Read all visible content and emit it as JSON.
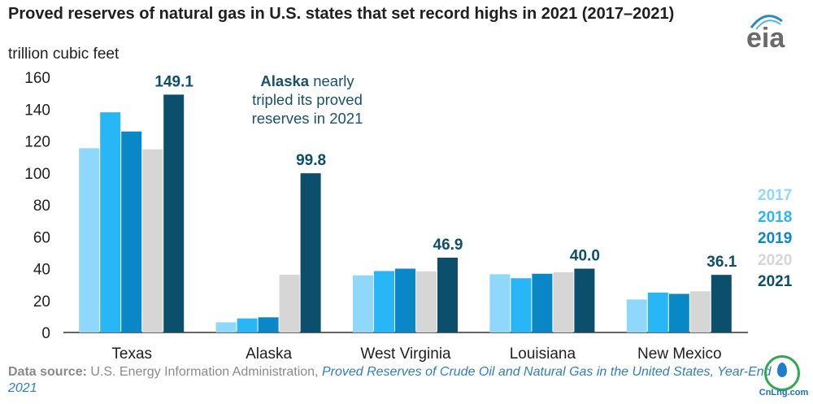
{
  "header": {
    "title": "Proved reserves of natural gas in U.S. states that set record highs in 2021 (2017–2021)",
    "unit": "trillion cubic feet",
    "logo_text": "eia"
  },
  "annotation": {
    "bold": "Alaska",
    "rest": " nearly tripled its proved reserves in 2021"
  },
  "source": {
    "label": "Data source:",
    "org": " U.S. Energy Information Administration, ",
    "publication": "Proved Reserves of Crude Oil and Natural Gas in the United States, Year-End 2021"
  },
  "watermark": {
    "text": "CnLng.com"
  },
  "colors": {
    "2017": "#8fd8fb",
    "2018": "#29b6f6",
    "2019": "#0a87c7",
    "2020": "#d6d6d6",
    "2021": "#0b4f6c",
    "axis": "#333333",
    "text": "#1f1f1f"
  },
  "chart_data": {
    "type": "bar",
    "categories": [
      "Texas",
      "Alaska",
      "West Virginia",
      "Louisiana",
      "New Mexico"
    ],
    "series": [
      {
        "name": "2017",
        "values": [
          115.5,
          6.4,
          35.8,
          36.5,
          20.7
        ]
      },
      {
        "name": "2018",
        "values": [
          138.0,
          8.8,
          38.5,
          34.0,
          25.0
        ]
      },
      {
        "name": "2019",
        "values": [
          126.0,
          9.5,
          40.0,
          36.8,
          24.2
        ]
      },
      {
        "name": "2020",
        "values": [
          114.8,
          36.2,
          38.3,
          37.8,
          25.8
        ]
      },
      {
        "name": "2021",
        "values": [
          149.1,
          99.8,
          46.9,
          40.0,
          36.1
        ]
      }
    ],
    "data_labels": [
      "149.1",
      "99.8",
      "46.9",
      "40.0",
      "36.1"
    ],
    "yticks": [
      "0",
      "20",
      "40",
      "60",
      "80",
      "100",
      "120",
      "140",
      "160"
    ],
    "ylim": [
      0,
      160
    ],
    "grid": false,
    "legend_position": "right",
    "ylabel": "trillion cubic feet"
  }
}
